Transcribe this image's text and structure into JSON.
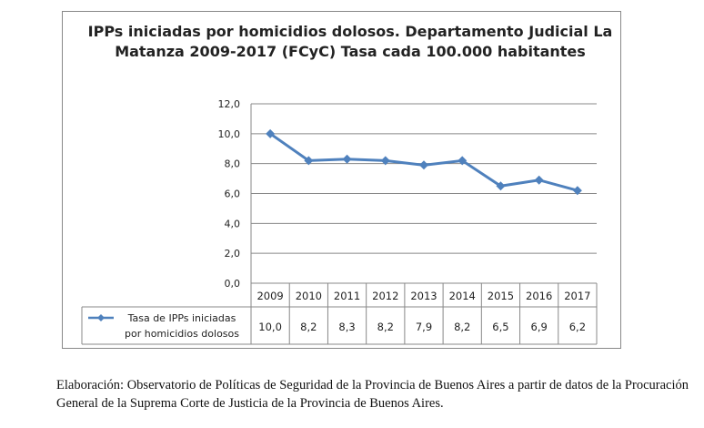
{
  "chart_data": {
    "type": "line",
    "title": "IPPs iniciadas por homicidios dolosos. Departamento Judicial La Matanza 2009-2017  (FCyC) Tasa cada 100.000 habitantes",
    "categories": [
      "2009",
      "2010",
      "2011",
      "2012",
      "2013",
      "2014",
      "2015",
      "2016",
      "2017"
    ],
    "series": [
      {
        "name": "Tasa de IPPs iniciadas por homicidios dolosos",
        "values": [
          10.0,
          8.2,
          8.3,
          8.2,
          7.9,
          8.2,
          6.5,
          6.9,
          6.2
        ],
        "labels": [
          "10,0",
          "8,2",
          "8,3",
          "8,2",
          "7,9",
          "8,2",
          "6,5",
          "6,9",
          "6,2"
        ],
        "color": "#4f81bd",
        "marker": "diamond"
      }
    ],
    "ylim": [
      0,
      12
    ],
    "yticks": [
      "0,0",
      "2,0",
      "4,0",
      "6,0",
      "8,0",
      "10,0",
      "12,0"
    ],
    "grid": true,
    "legend": "data-table"
  },
  "caption": "Elaboración: Observatorio de Políticas de Seguridad de la Provincia de Buenos Aires a partir de datos de la Procuración General de la Suprema Corte de Justicia de la Provincia de Buenos Aires."
}
